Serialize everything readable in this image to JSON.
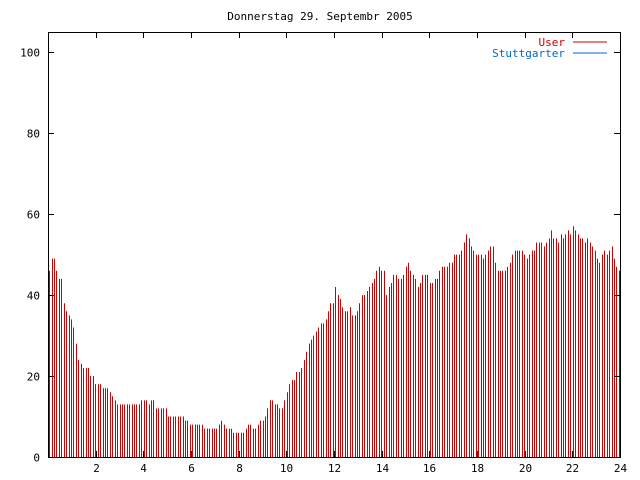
{
  "chart_data": {
    "type": "bar",
    "title": "Donnerstag 29. Septembr 2005",
    "xlabel": "",
    "ylabel": "",
    "xlim": [
      0,
      24
    ],
    "ylim": [
      0,
      105
    ],
    "xticks": [
      2,
      4,
      6,
      8,
      10,
      12,
      14,
      16,
      18,
      20,
      22,
      24
    ],
    "yticks": [
      0,
      20,
      40,
      60,
      80,
      100
    ],
    "grid": false,
    "legend": "top-right",
    "bin_hours": 0.0833,
    "series": [
      {
        "name": "User",
        "color": "#cc0000",
        "values": [
          46,
          49,
          49,
          46,
          44,
          44,
          38,
          36,
          35,
          34,
          32,
          28,
          24,
          23,
          22,
          22,
          22,
          20,
          20,
          18,
          18,
          18,
          17,
          17,
          17,
          16,
          15,
          14,
          13,
          13,
          13,
          13,
          13,
          13,
          13,
          13,
          13,
          13,
          14,
          14,
          14,
          13,
          14,
          14,
          12,
          12,
          12,
          12,
          12,
          10,
          10,
          10,
          10,
          10,
          10,
          10,
          9,
          9,
          8,
          8,
          8,
          8,
          8,
          8,
          7,
          7,
          7,
          7,
          7,
          7,
          8,
          9,
          8,
          7,
          7,
          7,
          6,
          6,
          6,
          6,
          6,
          7,
          8,
          8,
          7,
          7,
          8,
          9,
          9,
          10,
          12,
          14,
          14,
          13,
          13,
          12,
          12,
          14,
          16,
          18,
          19,
          19,
          21,
          21,
          22,
          24,
          26,
          28,
          29,
          30,
          31,
          32,
          33,
          33,
          34,
          36,
          38,
          38,
          42,
          40,
          39,
          37,
          36,
          36,
          37,
          35,
          35,
          36,
          38,
          40,
          40,
          41,
          42,
          43,
          44,
          46,
          47,
          46,
          46,
          40,
          42,
          43,
          45,
          45,
          44,
          44,
          45,
          47,
          48,
          46,
          45,
          44,
          42,
          43,
          45,
          45,
          45,
          43,
          43,
          44,
          44,
          46,
          47,
          47,
          47,
          48,
          48,
          50,
          50,
          50,
          51,
          53,
          55,
          54,
          52,
          51,
          50,
          50,
          50,
          49,
          50,
          51,
          52,
          52,
          48,
          46,
          46,
          46,
          46,
          47,
          48,
          50,
          51,
          51,
          51,
          51,
          50,
          49,
          50,
          51,
          51,
          53,
          53,
          53,
          52,
          53,
          54,
          56,
          54,
          54,
          53,
          55,
          54,
          55,
          56,
          55,
          57,
          56,
          55,
          54,
          54,
          53,
          54,
          53,
          52,
          51,
          49,
          48,
          50,
          51,
          50,
          51,
          52,
          49,
          47,
          46
        ]
      },
      {
        "name": "Stuttgarter",
        "color": "#0066cc",
        "values": [
          0,
          0,
          0,
          0,
          0,
          0,
          0,
          0,
          0,
          0,
          0,
          0,
          0,
          0,
          0,
          0,
          0,
          0,
          0,
          0,
          0,
          0,
          0,
          0,
          0,
          0,
          0,
          0,
          0,
          0,
          0,
          0,
          0,
          0,
          0,
          0,
          0,
          0,
          0,
          0,
          0,
          0,
          0,
          0,
          0,
          0,
          0,
          0,
          0,
          0,
          0,
          0,
          0,
          0,
          0,
          0,
          0,
          0,
          0,
          0,
          0,
          0,
          0,
          0,
          0,
          0,
          0,
          0,
          0,
          0,
          0,
          0,
          0,
          0,
          0,
          0,
          0,
          0,
          0,
          0,
          0,
          0,
          0,
          0,
          0,
          0,
          0,
          0,
          0,
          0,
          0,
          0,
          0,
          0,
          0,
          0,
          0,
          0,
          0,
          0,
          0,
          0,
          0,
          0,
          0,
          0,
          0,
          0,
          0,
          0,
          0,
          0,
          0,
          0,
          0,
          0,
          0,
          0,
          0,
          0,
          0,
          0,
          0,
          0,
          0,
          0,
          0,
          0,
          0,
          0,
          0,
          0,
          0,
          0,
          0,
          0,
          0,
          0,
          0,
          0,
          0,
          0,
          0,
          0,
          0,
          0,
          0,
          0,
          0,
          0,
          0,
          0,
          0,
          0,
          0,
          0,
          0,
          0,
          0,
          0,
          0,
          0,
          0,
          0,
          0,
          0,
          0,
          0,
          0,
          0,
          0,
          0,
          0,
          0,
          0,
          0,
          0,
          0,
          0,
          0,
          0,
          0,
          0,
          0,
          0,
          0,
          0,
          0,
          0,
          0,
          0,
          0,
          0,
          0,
          0,
          0,
          0,
          0,
          0,
          0,
          0,
          0,
          0,
          0,
          0,
          0,
          0,
          0,
          0,
          0,
          0,
          0,
          0,
          0,
          0,
          0,
          0,
          0,
          0,
          0,
          0,
          0,
          0,
          0,
          0,
          0,
          0,
          0,
          0,
          0,
          0,
          0,
          0,
          0,
          0,
          0,
          0,
          0,
          0,
          0,
          0,
          0,
          0,
          0,
          0,
          0,
          0,
          0
        ]
      }
    ]
  },
  "colors": {
    "frame": "#000000",
    "background": "#ffffff"
  }
}
